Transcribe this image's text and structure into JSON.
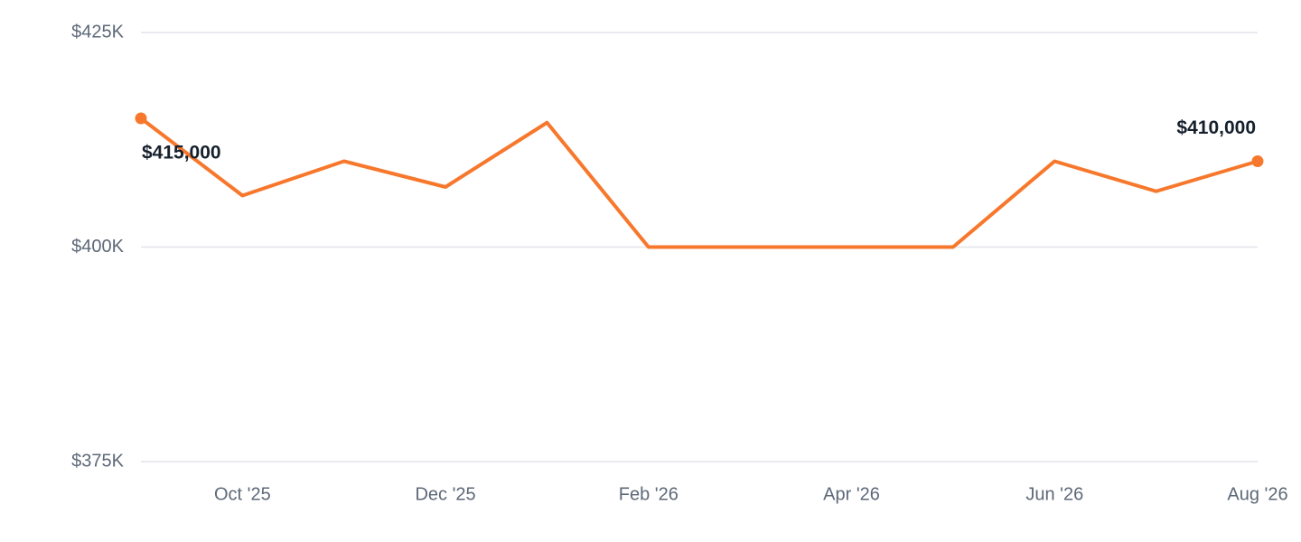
{
  "chart_data": {
    "type": "line",
    "categories": [
      null,
      "Oct '25",
      null,
      "Dec '25",
      null,
      "Feb '26",
      null,
      "Apr '26",
      null,
      "Jun '26",
      null,
      "Aug '26"
    ],
    "series": [
      {
        "color": "#f7782c",
        "values": [
          415000,
          406000,
          410000,
          407000,
          414500,
          400000,
          400000,
          400000,
          400000,
          410000,
          406500,
          410000
        ],
        "value_labels": [
          "$415,000",
          null,
          null,
          null,
          null,
          null,
          null,
          null,
          null,
          null,
          null,
          "$410,000"
        ]
      }
    ],
    "ylim": [
      375000,
      425000
    ],
    "yticks": [
      {
        "value": 375000,
        "label": "$375K"
      },
      {
        "value": 400000,
        "label": "$400K"
      },
      {
        "value": 425000,
        "label": "$425K"
      }
    ],
    "grid": true
  }
}
